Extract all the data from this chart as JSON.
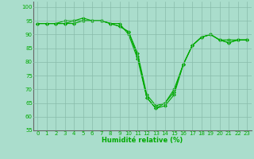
{
  "xlabel": "Humidité relative (%)",
  "line1": [
    94,
    94,
    94,
    94,
    94,
    95,
    95,
    95,
    94,
    94,
    90,
    81,
    67,
    63,
    64,
    68,
    79,
    86,
    89,
    90,
    88,
    87,
    88,
    88
  ],
  "line2": [
    94,
    94,
    94,
    94,
    95,
    95,
    95,
    95,
    94,
    93,
    91,
    82,
    67,
    63,
    65,
    69,
    79,
    86,
    89,
    90,
    88,
    87,
    88,
    88
  ],
  "line3": [
    94,
    94,
    94,
    95,
    95,
    96,
    95,
    95,
    94,
    93,
    91,
    83,
    68,
    64,
    65,
    70,
    79,
    86,
    89,
    90,
    88,
    88,
    88,
    88
  ],
  "x": [
    0,
    1,
    2,
    3,
    4,
    5,
    6,
    7,
    8,
    9,
    10,
    11,
    12,
    13,
    14,
    15,
    16,
    17,
    18,
    19,
    20,
    21,
    22,
    23
  ],
  "ylim": [
    55,
    102
  ],
  "xlim": [
    -0.5,
    23.5
  ],
  "yticks": [
    55,
    60,
    65,
    70,
    75,
    80,
    85,
    90,
    95,
    100
  ],
  "xticks": [
    0,
    1,
    2,
    3,
    4,
    5,
    6,
    7,
    8,
    9,
    10,
    11,
    12,
    13,
    14,
    15,
    16,
    17,
    18,
    19,
    20,
    21,
    22,
    23
  ],
  "xtick_labels": [
    "0",
    "1",
    "2",
    "3",
    "4",
    "5",
    "6",
    "7",
    "8",
    "9",
    "10",
    "11",
    "12",
    "13",
    "14",
    "15",
    "16",
    "17",
    "18",
    "19",
    "20",
    "21",
    "22",
    "23"
  ],
  "line_color": "#00aa00",
  "bg_color": "#aaddcc",
  "grid_color": "#88bbaa",
  "text_color": "#00aa00",
  "marker": "D",
  "markersize": 2.0,
  "linewidth": 0.8,
  "tick_fontsize": 5.0,
  "xlabel_fontsize": 6.0
}
